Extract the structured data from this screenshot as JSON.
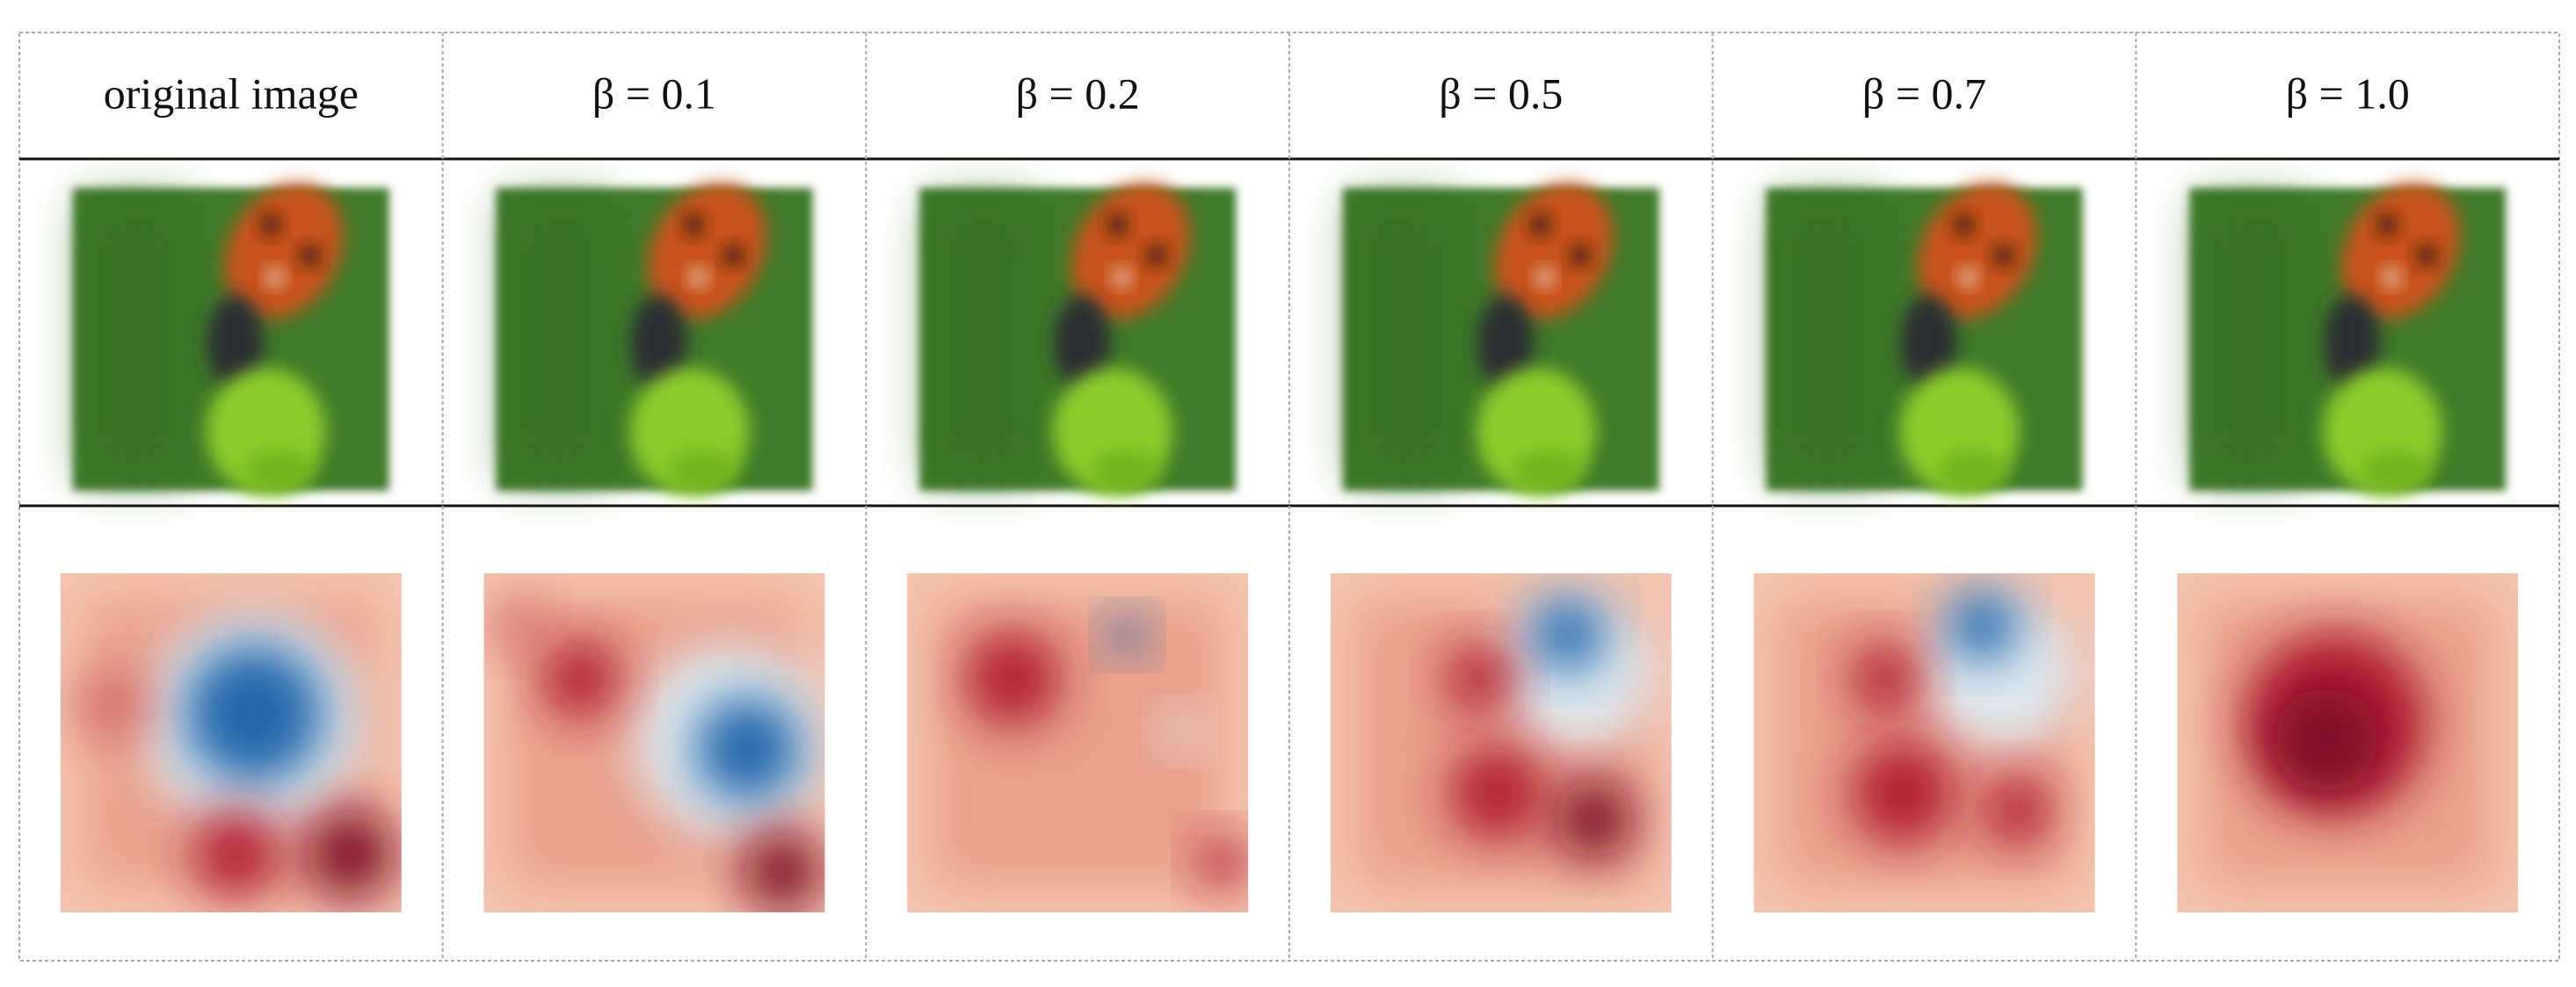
{
  "header": {
    "columns": [
      "original image",
      "β = 0.1",
      "β = 0.2",
      "β = 0.5",
      "β = 0.7",
      "β = 1.0"
    ]
  }
}
